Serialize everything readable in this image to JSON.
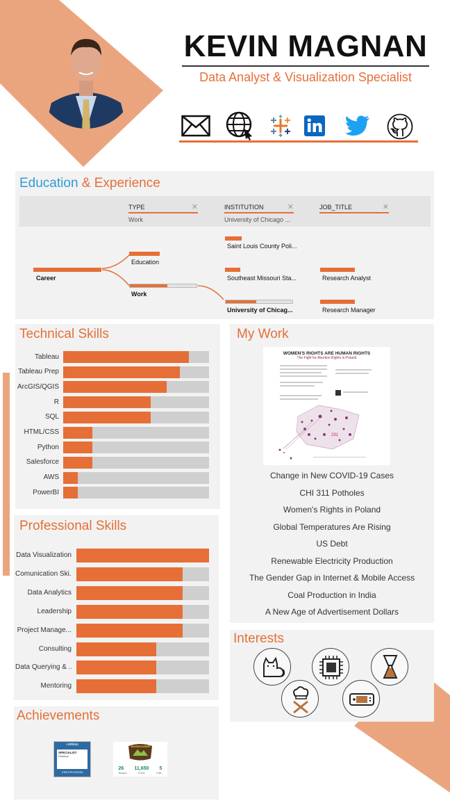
{
  "header": {
    "name": "KEVIN MAGNAN",
    "subtitle": "Data Analyst & Visualization Specialist",
    "social_icons": [
      "mail-icon",
      "web-icon",
      "tableau-icon",
      "linkedin-icon",
      "twitter-icon",
      "github-icon"
    ]
  },
  "education": {
    "title_part1": "Education",
    "title_amp": " & ",
    "title_part2": "Experience",
    "filters": [
      {
        "label": "TYPE",
        "value": "Work"
      },
      {
        "label": "INSTITUTION",
        "value": "University of Chicago ..."
      },
      {
        "label": "JOB_TITLE",
        "value": ""
      }
    ],
    "root": "Career",
    "types": [
      "Education",
      "Work"
    ],
    "institutions": [
      "Saint Louis County Poli...",
      "Southeast Missouri Sta...",
      "University of Chicag..."
    ],
    "jobs": [
      "Research Analyst",
      "Research Manager"
    ]
  },
  "technical": {
    "title": "Technical Skills",
    "skills": [
      {
        "name": "Tableau",
        "level": 0.86
      },
      {
        "name": "Tableau Prep",
        "level": 0.8
      },
      {
        "name": "ArcGIS/QGIS",
        "level": 0.71
      },
      {
        "name": "R",
        "level": 0.6
      },
      {
        "name": "SQL",
        "level": 0.6
      },
      {
        "name": "HTML/CSS",
        "level": 0.2
      },
      {
        "name": "Python",
        "level": 0.2
      },
      {
        "name": "Salesforce",
        "level": 0.2
      },
      {
        "name": "AWS",
        "level": 0.1
      },
      {
        "name": "PowerBI",
        "level": 0.1
      }
    ]
  },
  "professional": {
    "title": "Professional Skills",
    "skills": [
      {
        "name": "Data Visualization",
        "level": 1.0
      },
      {
        "name": "Comunication Ski...",
        "level": 0.8
      },
      {
        "name": "Data Analytics",
        "level": 0.8
      },
      {
        "name": "Leadership",
        "level": 0.8
      },
      {
        "name": "Project Manage...",
        "level": 0.8
      },
      {
        "name": "Consulting",
        "level": 0.6
      },
      {
        "name": "Data Querying & ...",
        "level": 0.6
      },
      {
        "name": "Mentoring",
        "level": 0.6
      }
    ]
  },
  "achievements": {
    "title": "Achievements",
    "badge1": {
      "brand": "+ableau",
      "l1": "SPECIALIST",
      "l2": "Desktop",
      "l3": "CERTIFICATION"
    },
    "badge2": {
      "ribbon": "ADVENTURER",
      "stats": [
        "26",
        "11,650",
        "5"
      ],
      "stat_labels": [
        "Badges",
        "Points",
        "Trails"
      ]
    }
  },
  "my_work": {
    "title": "My Work",
    "thumb_title": "WOMEN'S RIGHTS ARE HUMAN RIGHTS",
    "thumb_subtitle": "The Fight for Abortion Rights in Poland",
    "thumb_stat": "231",
    "items": [
      "Change in New COVID-19 Cases",
      "CHI 311 Potholes",
      "Women's Rights in Poland",
      "Global Temperatures Are Rising",
      "US Debt",
      "Renewable Electricity Production",
      "The Gender Gap in Internet & Mobile Access",
      "Coal Production in India",
      "A New Age of Advertisement Dollars"
    ]
  },
  "interests": {
    "title": "Interests",
    "icons": [
      "cat-icon",
      "cpu-chip-icon",
      "coffee-chemex-icon",
      "chef-hat-icon",
      "game-console-icon"
    ]
  },
  "colors": {
    "accent": "#e56f37",
    "blue": "#2f9bd3",
    "panel": "#f2f2f2",
    "bar_bg": "#cfcfcf",
    "deco": "#eba57e"
  }
}
